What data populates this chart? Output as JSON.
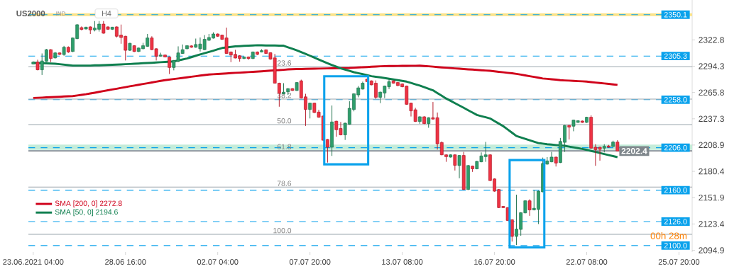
{
  "chart_data": {
    "type": "candlestick",
    "title": "US2000",
    "categories": [
      "23.06.2021 04:00",
      null,
      null,
      null,
      null,
      null,
      null,
      null,
      null,
      null,
      null,
      null,
      null,
      null,
      null,
      null,
      null,
      null,
      null,
      null,
      null,
      "28.06 16:00",
      null,
      null,
      null,
      null,
      null,
      null,
      null,
      null,
      null,
      null,
      null,
      null,
      null,
      null,
      null,
      null,
      null,
      null,
      null,
      null,
      "02.07 04:00",
      null,
      null,
      null,
      null,
      null,
      null,
      null,
      null,
      null,
      null,
      null,
      null,
      null,
      null,
      null,
      null,
      null,
      null,
      null,
      null,
      "07.07 20:00",
      null,
      null,
      null,
      null,
      null,
      null,
      null,
      null,
      null,
      null,
      null,
      null,
      null,
      null,
      null,
      null,
      null,
      null,
      null,
      null,
      "13.07 08:00",
      null,
      null,
      null,
      null,
      null,
      null,
      null,
      null,
      null,
      null,
      null,
      null,
      null,
      null,
      null,
      null,
      null,
      null,
      null,
      null,
      "16.07 20:00",
      null,
      null,
      null,
      null,
      null,
      null,
      null,
      null,
      null,
      null,
      null,
      null,
      null,
      null,
      null,
      null,
      null,
      null,
      null,
      null,
      "22.07 08:00",
      null,
      null,
      null,
      null,
      null,
      null,
      null,
      null,
      null,
      null,
      null,
      null,
      null,
      null,
      null,
      null,
      null,
      null,
      null,
      null,
      "25.07 20:00"
    ],
    "ohlc": [
      [
        2296.7,
        2299.5,
        2296.2,
        2298.7
      ],
      [
        2298.7,
        2301.3,
        2289.8,
        2290.4
      ],
      [
        2290.4,
        2308.1,
        2284.8,
        2300.0
      ],
      [
        2299.5,
        2313.0,
        2299.0,
        2312.2
      ],
      [
        2312.2,
        2312.7,
        2298.7,
        2302.6
      ],
      [
        2303.3,
        2309.7,
        2302.6,
        2308.7
      ],
      [
        2308.7,
        2309.2,
        2306.4,
        2307.1
      ],
      [
        2306.9,
        2316.3,
        2305.6,
        2314.8
      ],
      [
        2314.8,
        2315.8,
        2308.7,
        2309.7
      ],
      [
        2310.2,
        2325.4,
        2309.7,
        2324.9
      ],
      [
        2324.2,
        2339.9,
        2323.4,
        2339.2
      ],
      [
        2336.1,
        2337.4,
        2333.1,
        2334.1
      ],
      [
        2334.6,
        2337.0,
        2334.1,
        2336.6
      ],
      [
        2336.9,
        2337.4,
        2329.2,
        2333.6
      ],
      [
        2333.6,
        2343.2,
        2332.0,
        2335.6
      ],
      [
        2334.3,
        2343.2,
        2331.8,
        2339.9
      ],
      [
        2339.9,
        2343.2,
        2329.5,
        2330.0
      ],
      [
        2336.9,
        2337.4,
        2333.6,
        2334.3
      ],
      [
        2334.3,
        2336.9,
        2333.6,
        2336.6
      ],
      [
        2336.9,
        2337.4,
        2325.4,
        2326.7
      ],
      [
        2328.0,
        2339.4,
        2318.6,
        2325.4
      ],
      [
        2326.7,
        2327.2,
        2300.5,
        2311.5
      ],
      [
        2311.5,
        2319.6,
        2310.7,
        2319.1
      ],
      [
        2316.5,
        2317.0,
        2309.7,
        2310.2
      ],
      [
        2310.2,
        2314.5,
        2309.7,
        2314.0
      ],
      [
        2313.2,
        2319.6,
        2312.7,
        2316.5
      ],
      [
        2315.8,
        2329.2,
        2315.3,
        2324.9
      ],
      [
        2324.9,
        2326.7,
        2311.7,
        2312.2
      ],
      [
        2313.2,
        2313.7,
        2300.5,
        2305.1
      ],
      [
        2305.1,
        2308.9,
        2304.6,
        2306.4
      ],
      [
        2306.4,
        2306.9,
        2303.8,
        2304.3
      ],
      [
        2304.3,
        2304.8,
        2285.8,
        2292.9
      ],
      [
        2292.9,
        2301.0,
        2289.8,
        2300.5
      ],
      [
        2299.5,
        2315.8,
        2298.7,
        2308.7
      ],
      [
        2308.1,
        2317.8,
        2307.6,
        2312.2
      ],
      [
        2313.2,
        2316.8,
        2312.7,
        2316.5
      ],
      [
        2316.3,
        2316.8,
        2314.3,
        2314.8
      ],
      [
        2314.8,
        2324.2,
        2314.3,
        2317.8
      ],
      [
        2313.2,
        2325.4,
        2310.2,
        2318.3
      ],
      [
        2312.2,
        2328.0,
        2311.7,
        2323.4
      ],
      [
        2322.4,
        2329.2,
        2321.6,
        2325.4
      ],
      [
        2324.7,
        2331.0,
        2324.2,
        2329.2
      ],
      [
        2329.2,
        2329.7,
        2326.2,
        2326.7
      ],
      [
        2328.0,
        2328.5,
        2322.9,
        2323.4
      ],
      [
        2324.9,
        2336.1,
        2307.6,
        2308.1
      ],
      [
        2309.7,
        2310.2,
        2298.7,
        2306.4
      ],
      [
        2307.1,
        2312.0,
        2302.8,
        2303.1
      ],
      [
        2305.6,
        2306.1,
        2299.2,
        2302.6
      ],
      [
        2302.6,
        2304.8,
        2302.0,
        2304.3
      ],
      [
        2304.3,
        2304.8,
        2301.3,
        2302.6
      ],
      [
        2302.6,
        2310.2,
        2302.0,
        2309.7
      ],
      [
        2309.7,
        2310.2,
        2306.4,
        2307.1
      ],
      [
        2309.7,
        2312.7,
        2309.2,
        2311.2
      ],
      [
        2312.0,
        2312.5,
        2307.6,
        2308.1
      ],
      [
        2308.9,
        2309.4,
        2301.3,
        2302.0
      ],
      [
        2303.3,
        2307.6,
        2275.6,
        2275.9
      ],
      [
        2275.9,
        2276.4,
        2250.4,
        2264.9
      ],
      [
        2264.4,
        2275.9,
        2263.6,
        2266.2
      ],
      [
        2266.5,
        2270.5,
        2263.2,
        2270.0
      ],
      [
        2270.0,
        2270.5,
        2267.5,
        2268.0
      ],
      [
        2268.0,
        2277.1,
        2267.5,
        2276.6
      ],
      [
        2278.4,
        2279.7,
        2259.3,
        2259.8
      ],
      [
        2261.1,
        2264.4,
        2229.6,
        2247.4
      ],
      [
        2247.4,
        2254.8,
        2237.7,
        2254.3
      ],
      [
        2254.3,
        2254.8,
        2243.6,
        2244.1
      ],
      [
        2244.6,
        2247.1,
        2238.5,
        2239.0
      ],
      [
        2240.3,
        2241.0,
        2213.6,
        2214.1
      ],
      [
        2214.9,
        2215.4,
        2189.9,
        2206.5
      ],
      [
        2206.5,
        2251.7,
        2197.1,
        2233.9
      ],
      [
        2234.7,
        2235.2,
        2217.9,
        2225.5
      ],
      [
        2226.8,
        2233.9,
        2219.4,
        2219.9
      ],
      [
        2219.9,
        2233.1,
        2214.4,
        2232.6
      ],
      [
        2231.4,
        2256.3,
        2230.9,
        2248.7
      ],
      [
        2247.4,
        2264.9,
        2245.4,
        2264.4
      ],
      [
        2263.2,
        2272.8,
        2260.6,
        2270.8
      ],
      [
        2269.5,
        2277.6,
        2269.0,
        2275.9
      ],
      [
        2280.2,
        2280.7,
        2277.1,
        2277.6
      ],
      [
        2278.4,
        2278.9,
        2273.6,
        2274.1
      ],
      [
        2275.9,
        2278.9,
        2258.8,
        2260.6
      ],
      [
        2260.6,
        2266.7,
        2254.3,
        2266.2
      ],
      [
        2265.2,
        2273.3,
        2259.8,
        2272.8
      ],
      [
        2272.0,
        2280.2,
        2269.5,
        2277.6
      ],
      [
        2278.4,
        2278.9,
        2275.4,
        2275.9
      ],
      [
        2276.6,
        2277.1,
        2272.8,
        2273.3
      ],
      [
        2275.1,
        2275.6,
        2271.5,
        2272.0
      ],
      [
        2272.8,
        2273.3,
        2252.5,
        2253.0
      ],
      [
        2254.3,
        2254.8,
        2239.8,
        2245.9
      ],
      [
        2247.1,
        2249.2,
        2233.9,
        2234.4
      ],
      [
        2234.4,
        2240.0,
        2231.9,
        2239.5
      ],
      [
        2239.5,
        2240.0,
        2231.6,
        2232.1
      ],
      [
        2232.1,
        2239.0,
        2227.6,
        2238.5
      ],
      [
        2238.5,
        2255.5,
        2236.5,
        2237.0
      ],
      [
        2238.5,
        2244.1,
        2203.9,
        2210.3
      ],
      [
        2211.6,
        2212.8,
        2197.8,
        2198.3
      ],
      [
        2198.3,
        2198.8,
        2190.7,
        2196.3
      ],
      [
        2195.8,
        2198.8,
        2195.3,
        2198.3
      ],
      [
        2198.3,
        2198.8,
        2181.3,
        2186.9
      ],
      [
        2186.7,
        2198.1,
        2172.9,
        2197.6
      ],
      [
        2197.6,
        2201.4,
        2160.2,
        2160.7
      ],
      [
        2160.7,
        2187.2,
        2160.2,
        2186.7
      ],
      [
        2186.1,
        2186.6,
        2179.8,
        2183.1
      ],
      [
        2183.1,
        2191.7,
        2182.6,
        2191.2
      ],
      [
        2190.7,
        2200.9,
        2190.2,
        2197.1
      ],
      [
        2196.3,
        2212.3,
        2190.7,
        2198.3
      ],
      [
        2198.3,
        2198.8,
        2169.9,
        2170.4
      ],
      [
        2172.2,
        2172.7,
        2158.4,
        2158.9
      ],
      [
        2160.7,
        2161.2,
        2140.6,
        2141.1
      ],
      [
        2142.4,
        2142.9,
        2140.6,
        2141.1
      ],
      [
        2141.1,
        2141.6,
        2126.6,
        2127.2
      ],
      [
        2127.9,
        2128.4,
        2104.3,
        2109.9
      ],
      [
        2109.9,
        2155.1,
        2100.5,
        2117.8
      ],
      [
        2117.5,
        2136.1,
        2110.6,
        2135.6
      ],
      [
        2135.4,
        2149.0,
        2134.9,
        2148.5
      ],
      [
        2148.5,
        2150.1,
        2132.2,
        2138.6
      ],
      [
        2138.6,
        2160.2,
        2138.1,
        2140.4
      ],
      [
        2139.1,
        2159.4,
        2123.3,
        2158.9
      ],
      [
        2158.2,
        2195.3,
        2157.7,
        2188.9
      ],
      [
        2188.2,
        2195.8,
        2187.7,
        2191.7
      ],
      [
        2190.7,
        2201.4,
        2190.2,
        2195.8
      ],
      [
        2195.8,
        2196.3,
        2185.6,
        2189.4
      ],
      [
        2189.9,
        2216.6,
        2189.4,
        2212.8
      ],
      [
        2211.8,
        2230.6,
        2201.4,
        2230.1
      ],
      [
        2230.1,
        2230.6,
        2214.9,
        2228.3
      ],
      [
        2229.3,
        2236.4,
        2223.8,
        2235.9
      ],
      [
        2233.4,
        2235.7,
        2232.9,
        2235.2
      ],
      [
        2234.9,
        2235.4,
        2232.9,
        2233.4
      ],
      [
        2233.4,
        2239.5,
        2232.9,
        2239.0
      ],
      [
        2239.0,
        2241.0,
        2205.0,
        2205.5
      ],
      [
        2206.5,
        2209.8,
        2186.4,
        2203.9
      ],
      [
        2206.5,
        2207.0,
        2192.0,
        2204.2
      ],
      [
        2205.5,
        2209.8,
        2200.9,
        2207.5
      ],
      [
        2207.8,
        2209.0,
        2206.0,
        2206.5
      ],
      [
        2207.3,
        2213.6,
        2206.8,
        2212.1
      ],
      [
        2212.1,
        2214.1,
        2202.4,
        2202.4
      ],
      null,
      null,
      null,
      null,
      null,
      null,
      null,
      null,
      null,
      null,
      null,
      null,
      null,
      null
    ],
    "series": [
      {
        "name": "SMA [200, 0] 2272.8",
        "type": "line",
        "color": "#d0021b",
        "values": [
          2259.9,
          2260.1,
          2260.3,
          2260.6,
          2260.8,
          2261.0,
          2261.2,
          2261.5,
          2261.7,
          2261.9,
          2262.6,
          2263.2,
          2263.9,
          2264.8,
          2265.6,
          2266.5,
          2267.4,
          2268.2,
          2269.1,
          2269.9,
          2270.8,
          2271.6,
          2272.5,
          2273.3,
          2274.2,
          2275.0,
          2275.8,
          2276.7,
          2277.5,
          2278.4,
          2279.2,
          2279.8,
          2280.4,
          2281.0,
          2281.6,
          2282.2,
          2282.9,
          2283.5,
          2284.1,
          2284.7,
          2285.3,
          2285.6,
          2285.9,
          2286.2,
          2286.5,
          2286.8,
          2287.1,
          2287.3,
          2287.6,
          2287.9,
          2288.2,
          2288.5,
          2288.8,
          2289.1,
          2289.5,
          2289.8,
          2290.1,
          2290.4,
          2290.8,
          2291.1,
          2291.2,
          2291.3,
          2291.4,
          2291.5,
          2291.6,
          2291.7,
          2291.8,
          2291.9,
          2292.0,
          2292.1,
          2292.2,
          2292.3,
          2292.4,
          2292.7,
          2292.9,
          2293.2,
          2293.4,
          2293.7,
          2293.9,
          2294.2,
          2294.4,
          2294.5,
          2294.5,
          2294.6,
          2294.7,
          2294.7,
          2294.8,
          2294.8,
          2294.9,
          2294.5,
          2294.2,
          2293.8,
          2293.4,
          2293.0,
          2292.7,
          2292.3,
          2291.9,
          2291.6,
          2291.3,
          2290.9,
          2290.6,
          2290.3,
          2289.9,
          2289.6,
          2289.3,
          2288.8,
          2288.2,
          2287.7,
          2287.1,
          2286.6,
          2286.0,
          2285.2,
          2284.3,
          2283.5,
          2282.7,
          2281.8,
          2281.0,
          2280.6,
          2280.1,
          2279.7,
          2279.2,
          2278.9,
          2278.7,
          2278.4,
          2278.1,
          2277.9,
          2277.6,
          2277.1,
          2276.6,
          2276.1,
          2275.6,
          2275.1,
          2274.6,
          2274.1,
          null,
          null,
          null,
          null,
          null,
          null,
          null,
          null,
          null,
          null,
          null,
          null,
          null,
          null
        ]
      },
      {
        "name": "SMA [50, 0] 2194.6",
        "type": "line",
        "color": "#0f7f4f",
        "values": [
          2298.0,
          2297.8,
          2297.6,
          2297.4,
          2297.2,
          2297.0,
          2296.5,
          2296.0,
          2295.5,
          2295.0,
          2295.0,
          2295.0,
          2295.0,
          2295.0,
          2295.2,
          2295.3,
          2295.5,
          2295.7,
          2295.9,
          2296.0,
          2296.2,
          2296.5,
          2296.7,
          2297.0,
          2297.2,
          2297.5,
          2297.7,
          2298.0,
          2298.3,
          2298.6,
          2298.9,
          2299.2,
          2299.5,
          2300.5,
          2301.6,
          2302.6,
          2304.1,
          2305.6,
          2307.1,
          2308.4,
          2309.7,
          2311.1,
          2312.6,
          2314.0,
          2314.6,
          2315.2,
          2315.8,
          2316.0,
          2316.3,
          2316.5,
          2316.8,
          2317.0,
          2316.9,
          2316.8,
          2316.8,
          2316.7,
          2316.6,
          2316.5,
          2314.8,
          2313.2,
          2311.5,
          2309.5,
          2307.6,
          2305.6,
          2303.6,
          2301.5,
          2299.5,
          2297.5,
          2295.6,
          2293.8,
          2291.9,
          2290.5,
          2289.2,
          2287.8,
          2286.7,
          2285.7,
          2284.6,
          2283.5,
          2282.8,
          2282.2,
          2281.5,
          2280.7,
          2279.9,
          2279.2,
          2278.4,
          2277.6,
          2276.2,
          2274.7,
          2273.3,
          2271.6,
          2269.9,
          2268.2,
          2265.2,
          2262.3,
          2259.3,
          2256.8,
          2254.2,
          2251.7,
          2249.2,
          2246.6,
          2244.1,
          2241.5,
          2240.2,
          2239.0,
          2237.7,
          2234.9,
          2232.1,
          2229.3,
          2225.8,
          2222.2,
          2218.7,
          2217.2,
          2215.6,
          2214.1,
          2212.5,
          2211.0,
          2210.4,
          2209.8,
          2209.4,
          2208.9,
          2208.5,
          2208.0,
          2207.2,
          2206.4,
          2205.5,
          2204.7,
          2203.6,
          2202.5,
          2201.4,
          2200.3,
          2199.1,
          2198.0,
          2196.9,
          2195.8,
          null,
          null,
          null,
          null,
          null,
          null,
          null,
          null,
          null,
          null,
          null,
          null,
          null,
          null
        ]
      }
    ],
    "ylim": [
      2093,
      2366
    ],
    "yticks": [
      2094.9,
      2123.4,
      2151.9,
      2180.4,
      2208.9,
      2237.3,
      2265.8,
      2294.3,
      2322.8
    ],
    "bands": [
      {
        "axis": "y",
        "from": 2348.6,
        "to": 2351.6,
        "color": "#fbe38a"
      },
      {
        "axis": "y",
        "from": 2203.7,
        "to": 2209.3,
        "color": "#c3ecd9"
      }
    ],
    "ref_lines": [
      {
        "axis": "y",
        "value": 2350.1,
        "label": "2350.1",
        "color": "#0aa2ec",
        "line_style": "dashed"
      },
      {
        "axis": "y",
        "value": 2305.3,
        "label": "2305.3",
        "color": "#0aa2ec",
        "line_style": "dashed"
      },
      {
        "axis": "y",
        "value": 2258.0,
        "label": "2258.0",
        "color": "#0aa2ec",
        "line_style": "dashed"
      },
      {
        "axis": "y",
        "value": 2206.0,
        "label": "2206.0",
        "color": "#0aa2ec",
        "line_style": "dashed"
      },
      {
        "axis": "y",
        "value": 2160.0,
        "label": "2160.0",
        "color": "#0aa2ec",
        "line_style": "dashed"
      },
      {
        "axis": "y",
        "value": 2126.0,
        "label": "2126.0",
        "color": "#0aa2ec",
        "line_style": "dashed"
      },
      {
        "axis": "y",
        "value": 2100.0,
        "label": "2100.0",
        "color": "#0aa2ec",
        "line_style": "dashed"
      },
      {
        "axis": "y",
        "value": 2202.4,
        "label": "2202.4",
        "color": "#7f878c",
        "line_style": "solid"
      },
      {
        "axis": "y",
        "value": 2293.7,
        "color": "#9aa5ad",
        "line_style": "solid"
      },
      {
        "axis": "y",
        "value": 2258.6,
        "color": "#9aa5ad",
        "line_style": "solid"
      },
      {
        "axis": "y",
        "value": 2231.1,
        "color": "#9aa5ad",
        "line_style": "solid"
      },
      {
        "axis": "y",
        "value": 2203.0,
        "color": "#9aa5ad",
        "line_style": "solid"
      },
      {
        "axis": "y",
        "value": 2163.3,
        "color": "#9aa5ad",
        "line_style": "solid"
      },
      {
        "axis": "y",
        "value": 2112.2,
        "color": "#9aa5ad",
        "line_style": "solid"
      }
    ],
    "annotations": [
      "IND",
      "H4",
      "00h 28m",
      {
        "text": "23.6",
        "y": 2293.7
      },
      {
        "text": "38.2",
        "y": 2258.6
      },
      {
        "text": "50.0",
        "y": 2231.1
      },
      {
        "text": "61.8",
        "y": 2203.0
      },
      {
        "text": "78.6",
        "y": 2163.3
      },
      {
        "text": "100.0",
        "y": 2112.2
      }
    ],
    "legend": "bottom left"
  }
}
